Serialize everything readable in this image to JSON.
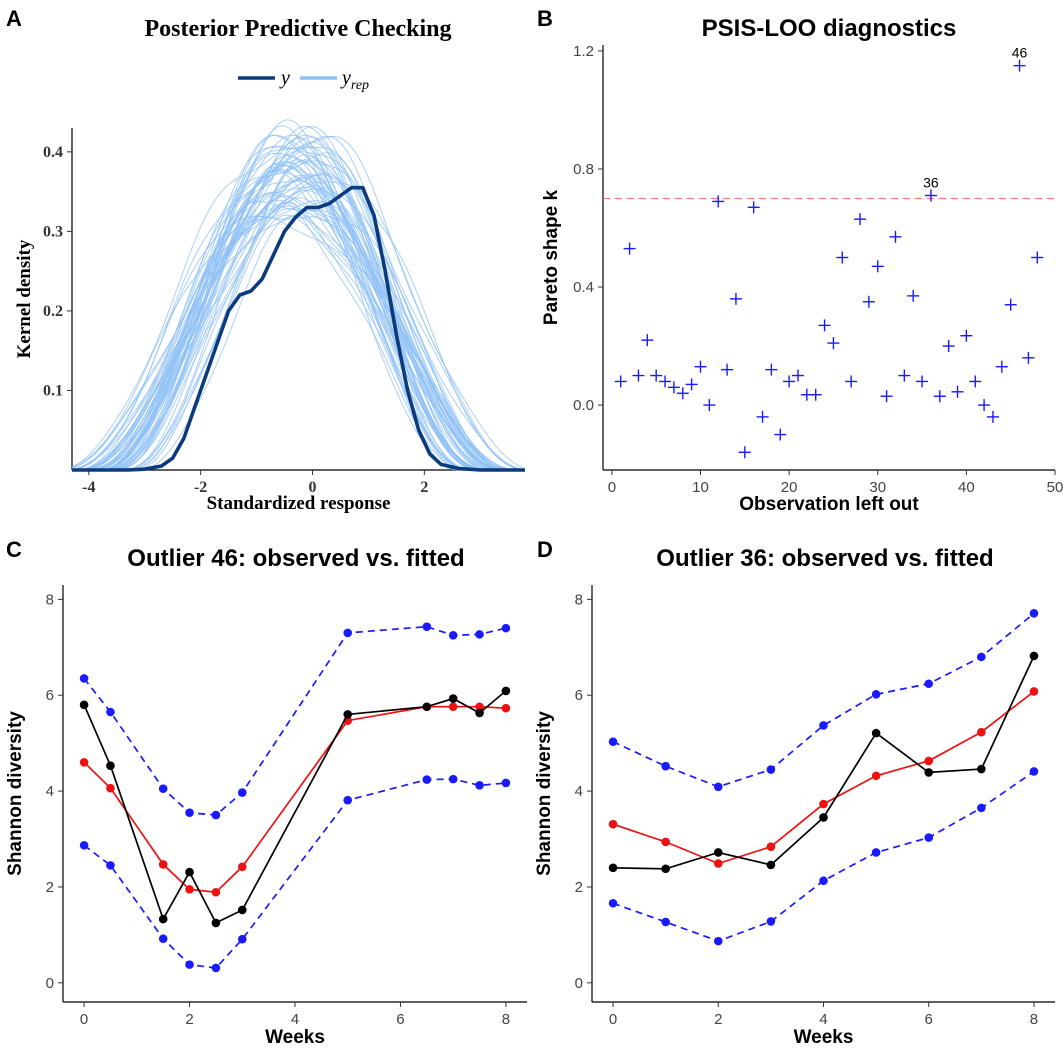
{
  "panel_labels": [
    "A",
    "B",
    "C",
    "D"
  ],
  "chart_data": [
    {
      "panel": "A",
      "type": "line",
      "title": "Posterior Predictive Checking",
      "xlabel": "Standardized response",
      "ylabel": "Kernel density",
      "xlim": [
        -4.3,
        3.8
      ],
      "ylim": [
        0,
        0.43
      ],
      "xticks": [
        -4,
        -2,
        0,
        2
      ],
      "yticks": [
        0.1,
        0.2,
        0.3,
        0.4
      ],
      "legend": {
        "placement": "top",
        "entries": [
          "y",
          "y_rep"
        ],
        "labels": {
          "y": "y",
          "yrep_base": "y",
          "yrep_sub": "rep"
        }
      },
      "colors": {
        "y": "#0b3b7d",
        "y_rep": "#8fc0f5"
      },
      "series": [
        {
          "name": "y",
          "x": [
            -4.3,
            -3.3,
            -3.0,
            -2.7,
            -2.5,
            -2.3,
            -2.1,
            -1.9,
            -1.7,
            -1.5,
            -1.3,
            -1.1,
            -0.9,
            -0.7,
            -0.5,
            -0.3,
            -0.1,
            0.1,
            0.3,
            0.5,
            0.7,
            0.9,
            1.1,
            1.3,
            1.5,
            1.7,
            1.9,
            2.1,
            2.3,
            2.6,
            3.0,
            3.8
          ],
          "values": [
            0,
            0,
            0.001,
            0.005,
            0.015,
            0.04,
            0.08,
            0.12,
            0.16,
            0.2,
            0.22,
            0.225,
            0.24,
            0.27,
            0.3,
            0.318,
            0.33,
            0.33,
            0.335,
            0.345,
            0.355,
            0.355,
            0.32,
            0.25,
            0.17,
            0.1,
            0.05,
            0.02,
            0.007,
            0.002,
            0,
            0
          ]
        }
      ],
      "y_rep": {
        "count": 60,
        "peak_range": [
          0.31,
          0.43
        ],
        "support": [
          -3.9,
          3.3
        ]
      }
    },
    {
      "panel": "B",
      "type": "scatter",
      "title": "PSIS-LOO diagnostics",
      "xlabel": "Observation left out",
      "ylabel": "Pareto shape k",
      "xlim": [
        -1,
        50
      ],
      "ylim": [
        -0.22,
        1.22
      ],
      "xticks": [
        0,
        10,
        20,
        30,
        40,
        50
      ],
      "yticks": [
        0.0,
        0.4,
        0.8,
        1.2
      ],
      "ytick_labels": [
        "0.0",
        "0.4",
        "0.8",
        "1.2"
      ],
      "hline": {
        "y": 0.7,
        "color": "#f47c7c",
        "style": "dashed"
      },
      "marker_color": "#1a1aff",
      "annotations": [
        {
          "text": "46",
          "x": 46,
          "y": 1.15
        },
        {
          "text": "36",
          "x": 36,
          "y": 0.71
        }
      ],
      "x": [
        1,
        2,
        3,
        4,
        5,
        6,
        7,
        8,
        9,
        10,
        11,
        12,
        13,
        14,
        15,
        16,
        17,
        18,
        19,
        20,
        21,
        22,
        23,
        24,
        25,
        26,
        27,
        28,
        29,
        30,
        31,
        32,
        33,
        34,
        35,
        36,
        37,
        38,
        39,
        40,
        41,
        42,
        43,
        44,
        45,
        46,
        47,
        48
      ],
      "values": [
        0.08,
        0.53,
        0.1,
        0.22,
        0.1,
        0.08,
        0.06,
        0.04,
        0.07,
        0.13,
        0.0,
        0.69,
        0.12,
        0.36,
        -0.16,
        0.67,
        -0.04,
        0.12,
        -0.1,
        0.08,
        0.1,
        0.035,
        0.035,
        0.27,
        0.21,
        0.5,
        0.08,
        0.63,
        0.35,
        0.47,
        0.03,
        0.57,
        0.1,
        0.37,
        0.08,
        0.71,
        0.03,
        0.2,
        0.045,
        0.235,
        0.08,
        0.0,
        -0.04,
        0.13,
        0.34,
        1.15,
        0.16,
        0.5
      ]
    },
    {
      "panel": "C",
      "type": "line",
      "title": "Outlier 46: observed vs. fitted",
      "xlabel": "Weeks",
      "ylabel": "Shannon diversity",
      "xlim": [
        -0.4,
        8.4
      ],
      "ylim": [
        -0.4,
        8.3
      ],
      "xticks": [
        0,
        2,
        4,
        6,
        8
      ],
      "yticks": [
        0,
        2,
        4,
        6,
        8
      ],
      "x": [
        0,
        0.5,
        1.5,
        2,
        2.5,
        3,
        5,
        6.5,
        7,
        7.5,
        8
      ],
      "series": [
        {
          "role": "upper",
          "color": "#1a1aff",
          "style": "dashed",
          "values": [
            6.35,
            5.65,
            4.05,
            3.55,
            3.5,
            3.97,
            7.3,
            7.43,
            7.25,
            7.27,
            7.4
          ]
        },
        {
          "role": "lower",
          "color": "#1a1aff",
          "style": "dashed",
          "values": [
            2.87,
            2.45,
            0.92,
            0.38,
            0.31,
            0.91,
            3.81,
            4.24,
            4.25,
            4.12,
            4.17
          ]
        },
        {
          "role": "fitted",
          "color": "#ee1111",
          "style": "solid",
          "values": [
            4.6,
            4.06,
            2.47,
            1.95,
            1.89,
            2.42,
            5.47,
            5.76,
            5.76,
            5.76,
            5.73
          ]
        },
        {
          "role": "observed",
          "color": "#000000",
          "style": "solid",
          "values": [
            5.8,
            4.53,
            1.33,
            2.31,
            1.25,
            1.52,
            5.6,
            5.76,
            5.93,
            5.63,
            6.09
          ]
        }
      ]
    },
    {
      "panel": "D",
      "type": "line",
      "title": "Outlier 36: observed vs. fitted",
      "xlabel": "Weeks",
      "ylabel": "Shannon diversity",
      "xlim": [
        -0.4,
        8.4
      ],
      "ylim": [
        -0.4,
        8.3
      ],
      "xticks": [
        0,
        2,
        4,
        6,
        8
      ],
      "yticks": [
        0,
        2,
        4,
        6,
        8
      ],
      "x": [
        0,
        1,
        2,
        3,
        4,
        5,
        6,
        7,
        8
      ],
      "series": [
        {
          "role": "upper",
          "color": "#1a1aff",
          "style": "dashed",
          "values": [
            5.03,
            4.52,
            4.09,
            4.45,
            5.37,
            6.02,
            6.24,
            6.8,
            7.71
          ]
        },
        {
          "role": "lower",
          "color": "#1a1aff",
          "style": "dashed",
          "values": [
            1.66,
            1.27,
            0.87,
            1.28,
            2.13,
            2.72,
            3.03,
            3.65,
            4.41
          ]
        },
        {
          "role": "fitted",
          "color": "#ee1111",
          "style": "solid",
          "values": [
            3.31,
            2.94,
            2.49,
            2.84,
            3.73,
            4.32,
            4.63,
            5.23,
            6.08
          ]
        },
        {
          "role": "observed",
          "color": "#000000",
          "style": "solid",
          "values": [
            2.4,
            2.38,
            2.72,
            2.46,
            3.45,
            5.21,
            4.39,
            4.46,
            6.82
          ]
        }
      ]
    }
  ]
}
